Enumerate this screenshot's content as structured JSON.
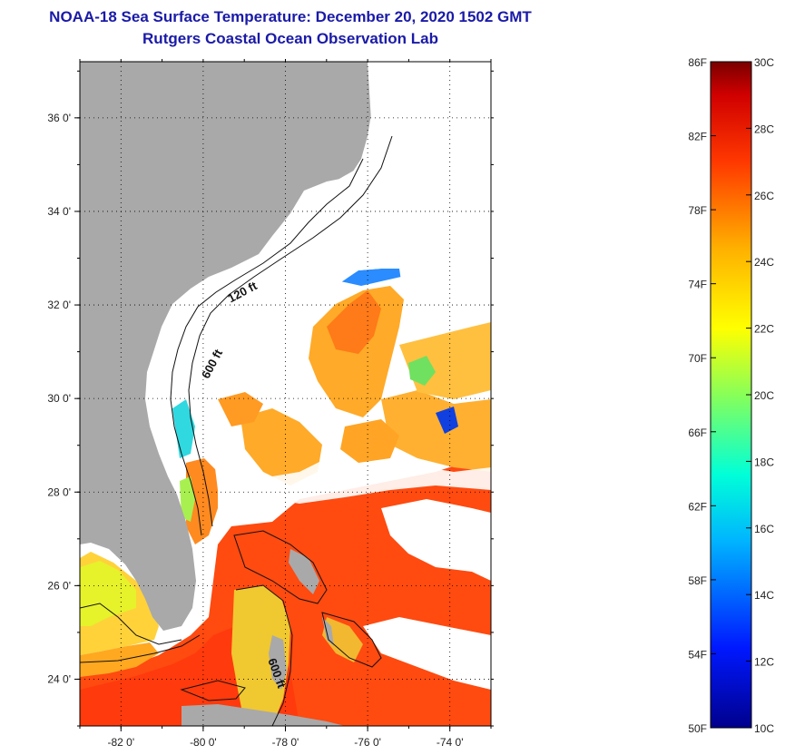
{
  "title": {
    "line1": "NOAA-18 Sea Surface Temperature:  December 20, 2020 1502 GMT",
    "line2": "Rutgers Coastal Ocean Observation Lab"
  },
  "map": {
    "lon_range": [
      -83.0,
      -73.0
    ],
    "lat_range": [
      23.0,
      37.2
    ],
    "lat_ticks": [
      {
        "value": 24,
        "label": "24 0'"
      },
      {
        "value": 26,
        "label": "26 0'"
      },
      {
        "value": 28,
        "label": "28 0'"
      },
      {
        "value": 30,
        "label": "30 0'"
      },
      {
        "value": 32,
        "label": "32 0'"
      },
      {
        "value": 34,
        "label": "34 0'"
      },
      {
        "value": 36,
        "label": "36 0'"
      }
    ],
    "lon_ticks": [
      {
        "value": -82,
        "label": "-82 0'"
      },
      {
        "value": -80,
        "label": "-80 0'"
      },
      {
        "value": -78,
        "label": "-78 0'"
      },
      {
        "value": -76,
        "label": "-76 0'"
      },
      {
        "value": -74,
        "label": "-74 0'"
      }
    ],
    "grid": "dotted",
    "land_color": "#a9a9a9",
    "cloud_color": "#ffffff",
    "contour_labels": [
      {
        "text": "120 ft",
        "lon": -79.0,
        "lat": 32.2,
        "rotate": -28
      },
      {
        "text": "600 ft",
        "lon": -79.7,
        "lat": 30.7,
        "rotate": -62
      },
      {
        "text": "600 ft",
        "lon": -78.3,
        "lat": 24.1,
        "rotate": 70
      }
    ]
  },
  "colorbar": {
    "fahrenheit_labels": [
      "86F",
      "82F",
      "78F",
      "74F",
      "70F",
      "66F",
      "62F",
      "58F",
      "54F",
      "50F"
    ],
    "celsius_labels": [
      "30C",
      "28C",
      "26C",
      "24C",
      "22C",
      "20C",
      "18C",
      "16C",
      "14C",
      "12C",
      "10C"
    ],
    "f_range": [
      50,
      86
    ],
    "c_range": [
      10,
      30
    ]
  }
}
